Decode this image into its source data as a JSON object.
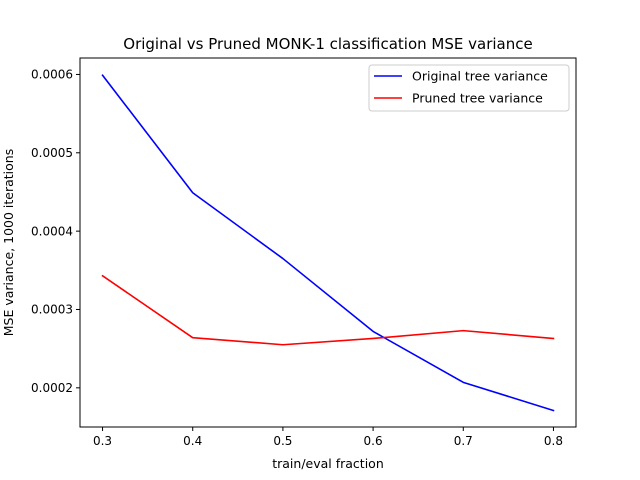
{
  "chart_data": {
    "type": "line",
    "title": "Original vs Pruned MONK-1 classification MSE variance",
    "xlabel": "train/eval fraction",
    "ylabel": "MSE variance, 1000 iterations",
    "x": [
      0.3,
      0.4,
      0.5,
      0.6,
      0.7,
      0.8
    ],
    "xticks": [
      "0.3",
      "0.4",
      "0.5",
      "0.6",
      "0.7",
      "0.8"
    ],
    "yticks": [
      "0.0002",
      "0.0003",
      "0.0004",
      "0.0005",
      "0.0006"
    ],
    "ytick_values": [
      0.0002,
      0.0003,
      0.0004,
      0.0005,
      0.0006
    ],
    "xlim": [
      0.275,
      0.825
    ],
    "ylim": [
      0.00015,
      0.000621
    ],
    "legend_position": "top-right",
    "grid": false,
    "series": [
      {
        "name": "Original tree variance",
        "color": "#0000ff",
        "values": [
          0.000599,
          0.000449,
          0.000365,
          0.000272,
          0.000207,
          0.000171
        ]
      },
      {
        "name": "Pruned tree variance",
        "color": "#ff0000",
        "values": [
          0.000343,
          0.000264,
          0.000255,
          0.000263,
          0.000273,
          0.000263
        ]
      }
    ]
  }
}
